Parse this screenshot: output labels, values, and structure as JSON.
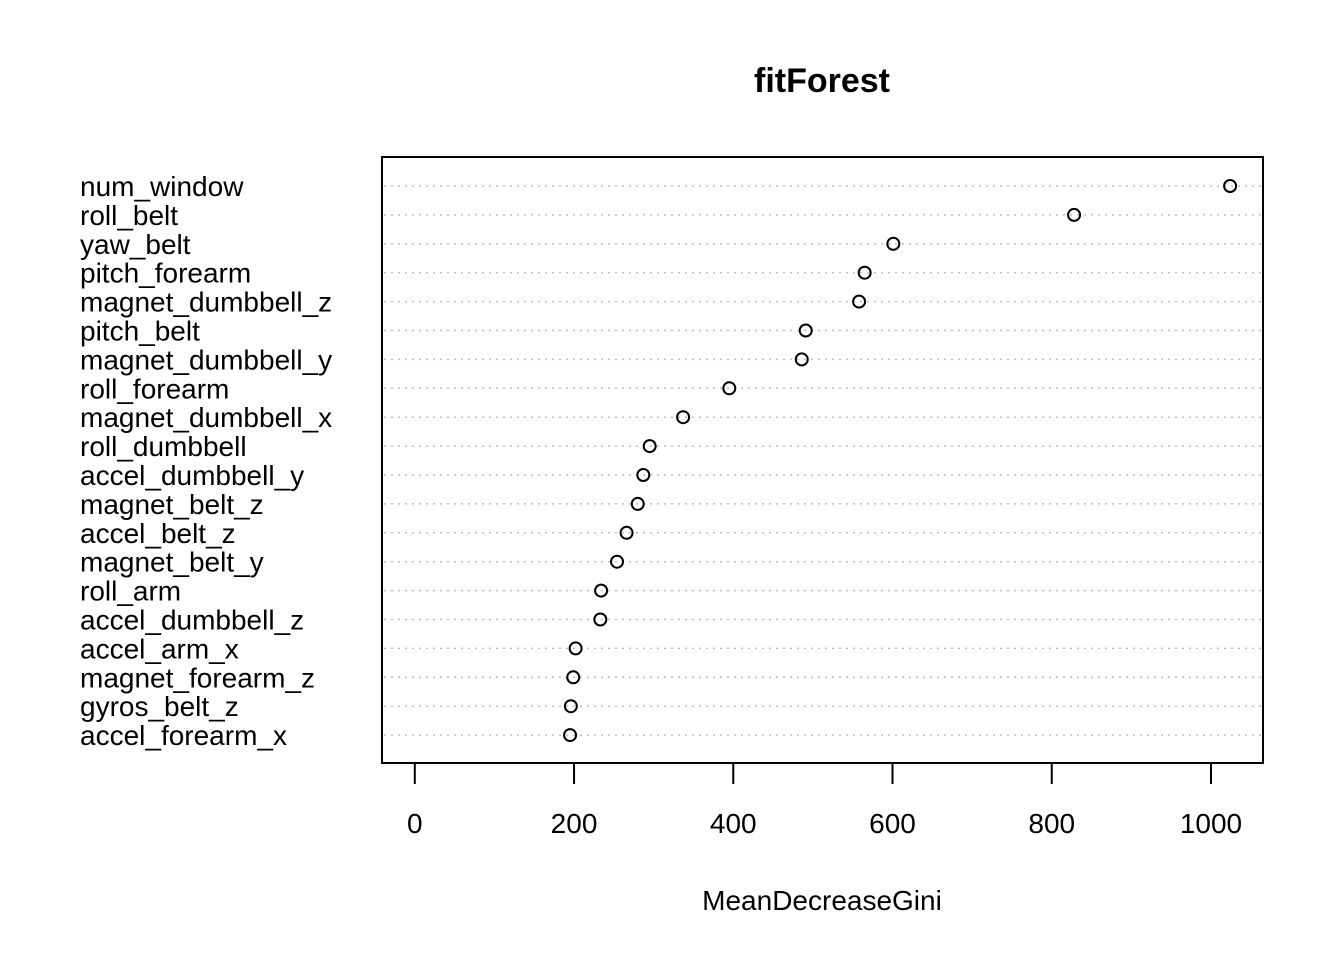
{
  "chart_data": {
    "type": "scatter",
    "title": "fitForest",
    "xlabel": "MeanDecreaseGini",
    "ylabel": "",
    "xlim": [
      -40,
      1065
    ],
    "xticks": [
      0,
      200,
      400,
      600,
      800,
      1000
    ],
    "grid": "dotted horizontal lines",
    "legend": "none",
    "categories": [
      "num_window",
      "roll_belt",
      "yaw_belt",
      "pitch_forearm",
      "magnet_dumbbell_z",
      "pitch_belt",
      "magnet_dumbbell_y",
      "roll_forearm",
      "magnet_dumbbell_x",
      "roll_dumbbell",
      "accel_dumbbell_y",
      "magnet_belt_z",
      "accel_belt_z",
      "magnet_belt_y",
      "roll_arm",
      "accel_dumbbell_z",
      "accel_arm_x",
      "magnet_forearm_z",
      "gyros_belt_z",
      "accel_forearm_x"
    ],
    "series": [
      {
        "values": [
          1024,
          828,
          601,
          565,
          558,
          491,
          486,
          395,
          337,
          295,
          287,
          280,
          266,
          254,
          234,
          233,
          202,
          199,
          196,
          195
        ]
      }
    ]
  },
  "style": {
    "point_color": "#000000",
    "grid_color": "#bebebe",
    "background": "#ffffff"
  }
}
